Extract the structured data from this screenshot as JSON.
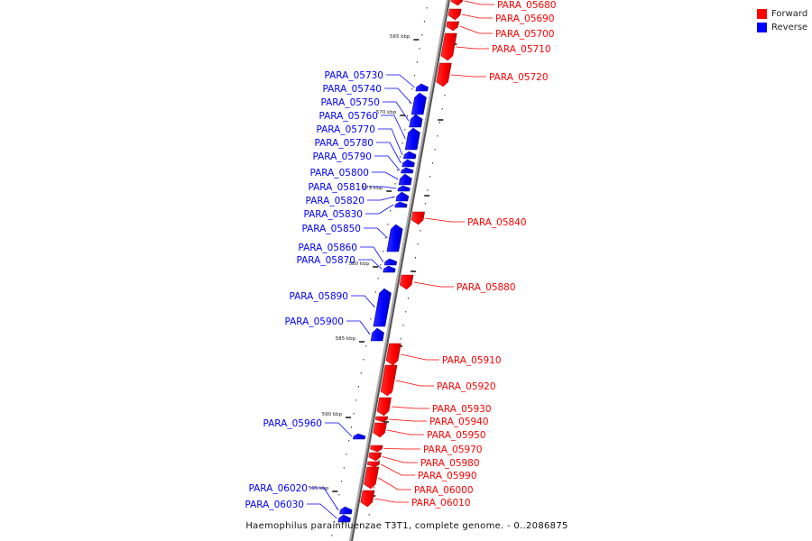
{
  "caption": "Haemophilus parainfluenzae T3T1, complete genome. - 0..2086875",
  "legend": [
    {
      "label": "Forward",
      "color": "#ff0000"
    },
    {
      "label": "Reverse",
      "color": "#0000ff"
    }
  ],
  "colors": {
    "forward": "#ff0000",
    "reverse": "#0000ff",
    "backbone": "#888888"
  },
  "chart_data": {
    "type": "genome-map",
    "ticks": [
      "565 kbp",
      "570 kbp",
      "575 kbp",
      "580 kbp",
      "585 kbp",
      "590 kbp",
      "595 kbp"
    ],
    "genes": [
      {
        "id": "PARA_05680",
        "strand": "forward"
      },
      {
        "id": "PARA_05690",
        "strand": "forward"
      },
      {
        "id": "PARA_05700",
        "strand": "forward"
      },
      {
        "id": "PARA_05710",
        "strand": "forward"
      },
      {
        "id": "PARA_05720",
        "strand": "forward"
      },
      {
        "id": "PARA_05730",
        "strand": "reverse"
      },
      {
        "id": "PARA_05740",
        "strand": "reverse"
      },
      {
        "id": "PARA_05750",
        "strand": "reverse"
      },
      {
        "id": "PARA_05760",
        "strand": "reverse"
      },
      {
        "id": "PARA_05770",
        "strand": "reverse"
      },
      {
        "id": "PARA_05780",
        "strand": "reverse"
      },
      {
        "id": "PARA_05790",
        "strand": "reverse"
      },
      {
        "id": "PARA_05800",
        "strand": "reverse"
      },
      {
        "id": "PARA_05810",
        "strand": "reverse"
      },
      {
        "id": "PARA_05820",
        "strand": "reverse"
      },
      {
        "id": "PARA_05830",
        "strand": "reverse"
      },
      {
        "id": "PARA_05840",
        "strand": "forward"
      },
      {
        "id": "PARA_05850",
        "strand": "reverse"
      },
      {
        "id": "PARA_05860",
        "strand": "reverse"
      },
      {
        "id": "PARA_05870",
        "strand": "reverse"
      },
      {
        "id": "PARA_05880",
        "strand": "forward"
      },
      {
        "id": "PARA_05890",
        "strand": "reverse"
      },
      {
        "id": "PARA_05900",
        "strand": "reverse"
      },
      {
        "id": "PARA_05910",
        "strand": "forward"
      },
      {
        "id": "PARA_05920",
        "strand": "forward"
      },
      {
        "id": "PARA_05930",
        "strand": "forward"
      },
      {
        "id": "PARA_05940",
        "strand": "forward"
      },
      {
        "id": "PARA_05950",
        "strand": "forward"
      },
      {
        "id": "PARA_05960",
        "strand": "reverse"
      },
      {
        "id": "PARA_05970",
        "strand": "forward"
      },
      {
        "id": "PARA_05980",
        "strand": "forward"
      },
      {
        "id": "PARA_05990",
        "strand": "forward"
      },
      {
        "id": "PARA_06000",
        "strand": "forward"
      },
      {
        "id": "PARA_06010",
        "strand": "forward"
      },
      {
        "id": "PARA_06020",
        "strand": "reverse"
      },
      {
        "id": "PARA_06030",
        "strand": "reverse"
      }
    ]
  }
}
